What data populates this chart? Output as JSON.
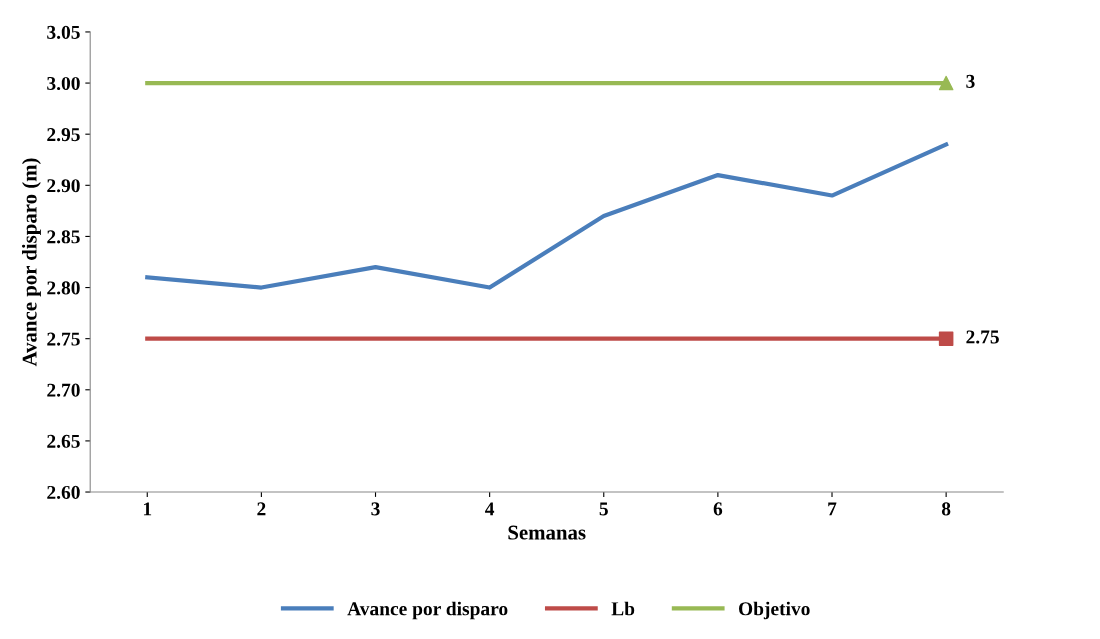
{
  "chart_data": {
    "type": "line",
    "xlabel": "Semanas",
    "ylabel": "Avance por disparo (m)",
    "categories": [
      "1",
      "2",
      "3",
      "4",
      "5",
      "6",
      "7",
      "8"
    ],
    "series": [
      {
        "name": "Avance por disparo",
        "color": "#4a7ebb",
        "values": [
          2.81,
          2.8,
          2.82,
          2.8,
          2.87,
          2.91,
          2.89,
          2.94
        ]
      },
      {
        "name": "Lb",
        "color": "#be4b48",
        "values": [
          2.75,
          2.75,
          2.75,
          2.75,
          2.75,
          2.75,
          2.75,
          2.75
        ]
      },
      {
        "name": "Objetivo",
        "color": "#98b954",
        "values": [
          3.0,
          3.0,
          3.0,
          3.0,
          3.0,
          3.0,
          3.0,
          3.0
        ]
      },
      {
        "type": "scatter",
        "x": [
          "8"
        ],
        "color": "#be4b48",
        "values": [
          2.75
        ],
        "marker": "square",
        "value_labels": [
          "2.75"
        ]
      },
      {
        "type": "scatter",
        "x": [
          "8"
        ],
        "color": "#98b954",
        "values": [
          3.0
        ],
        "marker": "triangle",
        "value_labels": [
          "3"
        ]
      }
    ],
    "ylim": [
      2.6,
      3.05
    ],
    "yticks": [
      {
        "value": 2.6,
        "label": "2.60"
      },
      {
        "value": 2.65,
        "label": "2.65"
      },
      {
        "value": 2.7,
        "label": "2.70"
      },
      {
        "value": 2.75,
        "label": "2.75"
      },
      {
        "value": 2.8,
        "label": "2.80"
      },
      {
        "value": 2.85,
        "label": "2.85"
      },
      {
        "value": 2.9,
        "label": "2.90"
      },
      {
        "value": 2.95,
        "label": "2.95"
      },
      {
        "value": 3.0,
        "label": "3.00"
      },
      {
        "value": 3.05,
        "label": "3.05"
      }
    ],
    "grid": false,
    "legend": "bottom",
    "line_style": "solid"
  }
}
